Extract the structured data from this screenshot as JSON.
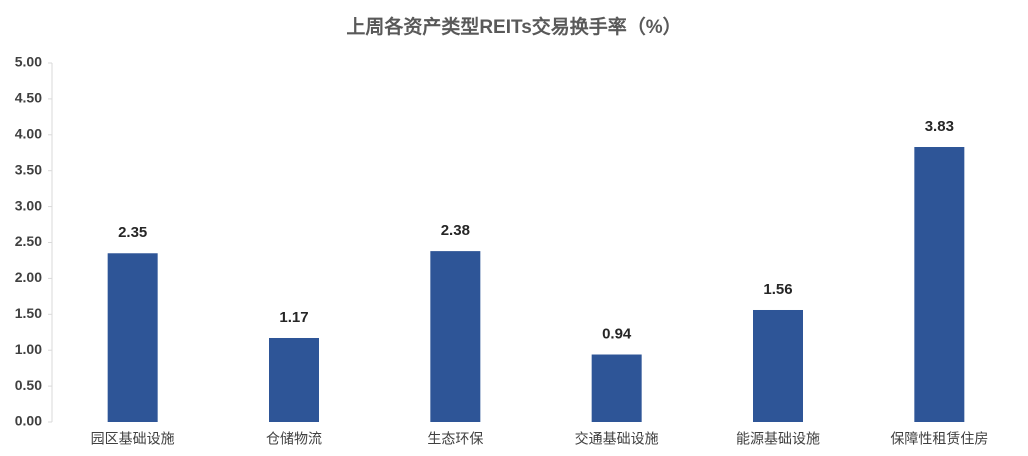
{
  "chart_data": {
    "type": "bar",
    "title": "上周各资产类型REITs交易换手率（%）",
    "categories": [
      "园区基础设施",
      "仓储物流",
      "生态环保",
      "交通基础设施",
      "能源基础设施",
      "保障性租赁住房"
    ],
    "values": [
      2.35,
      1.17,
      2.38,
      0.94,
      1.56,
      3.83
    ],
    "color": "#2e5597",
    "ylim": [
      0,
      5
    ],
    "yticks": [
      {
        "value": 0,
        "label": "0.00"
      },
      {
        "value": 0.5,
        "label": "0.50"
      },
      {
        "value": 1,
        "label": "1.00"
      },
      {
        "value": 1.5,
        "label": "1.50"
      },
      {
        "value": 2,
        "label": "2.00"
      },
      {
        "value": 2.5,
        "label": "2.50"
      },
      {
        "value": 3,
        "label": "3.00"
      },
      {
        "value": 3.5,
        "label": "3.50"
      },
      {
        "value": 4,
        "label": "4.00"
      },
      {
        "value": 4.5,
        "label": "4.50"
      },
      {
        "value": 5,
        "label": "5.00"
      }
    ],
    "grid": false
  }
}
